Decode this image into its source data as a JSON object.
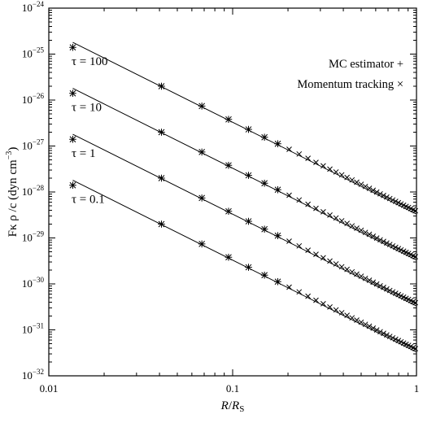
{
  "chart_data": {
    "type": "scatter",
    "x_scale": "log",
    "y_scale": "log",
    "xlim": [
      0.01,
      1
    ],
    "ylim": [
      1e-32,
      1e-24
    ],
    "x_ticks": [
      {
        "value": 0.01,
        "label": "0.01"
      },
      {
        "value": 0.1,
        "label": "0.1"
      },
      {
        "value": 1,
        "label": "1"
      }
    ],
    "y_ticks": [
      {
        "value": 1e-32,
        "base": "10",
        "exp": "−32"
      },
      {
        "value": 1e-31,
        "base": "10",
        "exp": "−31"
      },
      {
        "value": 1e-30,
        "base": "10",
        "exp": "−30"
      },
      {
        "value": 1e-29,
        "base": "10",
        "exp": "−29"
      },
      {
        "value": 1e-28,
        "base": "10",
        "exp": "−28"
      },
      {
        "value": 1e-27,
        "base": "10",
        "exp": "−27"
      },
      {
        "value": 1e-26,
        "base": "10",
        "exp": "−26"
      },
      {
        "value": 1e-25,
        "base": "10",
        "exp": "−25"
      },
      {
        "value": 1e-24,
        "base": "10",
        "exp": "−24"
      }
    ],
    "xlabel": {
      "var1": "R",
      "sep": "/",
      "var2": "R",
      "sub": "S"
    },
    "ylabel": {
      "main": "Fκ ρ /c (dyn cm",
      "sup": "−3",
      "close": ")"
    },
    "legend": {
      "position": "top-right",
      "entries": [
        {
          "label": "MC estimator",
          "marker": "+"
        },
        {
          "label": "Momentum tracking",
          "marker": "×"
        }
      ]
    },
    "series": [
      {
        "name": "τ = 100",
        "line_endpoints": [
          [
            0.0135,
            1.8e-25
          ],
          [
            1.0,
            3.3e-29
          ]
        ],
        "x": [
          0.0135,
          0.041,
          0.068,
          0.095,
          0.122,
          0.149,
          0.176,
          0.203,
          0.23,
          0.257,
          0.284,
          0.311,
          0.338,
          0.365,
          0.392,
          0.419,
          0.446,
          0.473,
          0.5,
          0.527,
          0.554,
          0.581,
          0.608,
          0.635,
          0.662,
          0.689,
          0.716,
          0.743,
          0.77,
          0.797,
          0.824,
          0.851,
          0.878,
          0.905,
          0.932,
          0.959,
          0.986
        ],
        "y": [
          1.4e-25,
          2e-26,
          7.4e-27,
          3.8e-27,
          2.3e-27,
          1.55e-27,
          1.12e-27,
          8.5e-28,
          6.7e-28,
          5.4e-28,
          4.4e-28,
          3.7e-28,
          3.15e-28,
          2.72e-28,
          2.36e-28,
          2.07e-28,
          1.83e-28,
          1.63e-28,
          1.47e-28,
          1.32e-28,
          1.2e-28,
          1.09e-28,
          9.95e-29,
          9.1e-29,
          8.4e-29,
          7.75e-29,
          7.2e-29,
          6.7e-29,
          6.25e-29,
          5.85e-29,
          5.5e-29,
          5.15e-29,
          4.85e-29,
          4.6e-29,
          4.35e-29,
          4.1e-29,
          3.9e-29
        ]
      },
      {
        "name": "τ = 10",
        "line_endpoints": [
          [
            0.0135,
            1.8e-26
          ],
          [
            1.0,
            3.3e-30
          ]
        ],
        "x": [
          0.0135,
          0.041,
          0.068,
          0.095,
          0.122,
          0.149,
          0.176,
          0.203,
          0.23,
          0.257,
          0.284,
          0.311,
          0.338,
          0.365,
          0.392,
          0.419,
          0.446,
          0.473,
          0.5,
          0.527,
          0.554,
          0.581,
          0.608,
          0.635,
          0.662,
          0.689,
          0.716,
          0.743,
          0.77,
          0.797,
          0.824,
          0.851,
          0.878,
          0.905,
          0.932,
          0.959,
          0.986
        ],
        "y": [
          1.4e-26,
          2e-27,
          7.4e-28,
          3.8e-28,
          2.3e-28,
          1.55e-28,
          1.12e-28,
          8.5e-29,
          6.7e-29,
          5.4e-29,
          4.4e-29,
          3.7e-29,
          3.15e-29,
          2.72e-29,
          2.36e-29,
          2.07e-29,
          1.83e-29,
          1.63e-29,
          1.47e-29,
          1.32e-29,
          1.2e-29,
          1.09e-29,
          9.95e-30,
          9.1e-30,
          8.4e-30,
          7.75e-30,
          7.2e-30,
          6.7e-30,
          6.25e-30,
          5.85e-30,
          5.5e-30,
          5.15e-30,
          4.85e-30,
          4.6e-30,
          4.35e-30,
          4.1e-30,
          3.9e-30
        ]
      },
      {
        "name": "τ = 1",
        "line_endpoints": [
          [
            0.0135,
            1.8e-27
          ],
          [
            1.0,
            3.3e-31
          ]
        ],
        "x": [
          0.0135,
          0.041,
          0.068,
          0.095,
          0.122,
          0.149,
          0.176,
          0.203,
          0.23,
          0.257,
          0.284,
          0.311,
          0.338,
          0.365,
          0.392,
          0.419,
          0.446,
          0.473,
          0.5,
          0.527,
          0.554,
          0.581,
          0.608,
          0.635,
          0.662,
          0.689,
          0.716,
          0.743,
          0.77,
          0.797,
          0.824,
          0.851,
          0.878,
          0.905,
          0.932,
          0.959,
          0.986
        ],
        "y": [
          1.4e-27,
          2e-28,
          7.4e-29,
          3.8e-29,
          2.3e-29,
          1.55e-29,
          1.12e-29,
          8.5e-30,
          6.7e-30,
          5.4e-30,
          4.4e-30,
          3.7e-30,
          3.15e-30,
          2.72e-30,
          2.36e-30,
          2.07e-30,
          1.83e-30,
          1.63e-30,
          1.47e-30,
          1.32e-30,
          1.2e-30,
          1.09e-30,
          9.95e-31,
          9.1e-31,
          8.4e-31,
          7.75e-31,
          7.2e-31,
          6.7e-31,
          6.25e-31,
          5.85e-31,
          5.5e-31,
          5.15e-31,
          4.85e-31,
          4.6e-31,
          4.35e-31,
          4.1e-31,
          3.9e-31
        ]
      },
      {
        "name": "τ = 0.1",
        "line_endpoints": [
          [
            0.0135,
            1.8e-28
          ],
          [
            1.0,
            3.3e-32
          ]
        ],
        "x": [
          0.0135,
          0.041,
          0.068,
          0.095,
          0.122,
          0.149,
          0.176,
          0.203,
          0.23,
          0.257,
          0.284,
          0.311,
          0.338,
          0.365,
          0.392,
          0.419,
          0.446,
          0.473,
          0.5,
          0.527,
          0.554,
          0.581,
          0.608,
          0.635,
          0.662,
          0.689,
          0.716,
          0.743,
          0.77,
          0.797,
          0.824,
          0.851,
          0.878,
          0.905,
          0.932,
          0.959,
          0.986
        ],
        "y": [
          1.4e-28,
          2e-29,
          7.4e-30,
          3.8e-30,
          2.3e-30,
          1.55e-30,
          1.12e-30,
          8.5e-31,
          6.7e-31,
          5.4e-31,
          4.4e-31,
          3.7e-31,
          3.15e-31,
          2.72e-31,
          2.36e-31,
          2.07e-31,
          1.83e-31,
          1.63e-31,
          1.47e-31,
          1.32e-31,
          1.2e-31,
          1.09e-31,
          9.95e-32,
          9.1e-32,
          8.4e-32,
          7.75e-32,
          7.2e-32,
          6.7e-32,
          6.25e-32,
          5.85e-32,
          5.5e-32,
          5.15e-32,
          4.85e-32,
          4.6e-32,
          4.35e-32,
          4.1e-32,
          3.9e-32
        ]
      }
    ]
  }
}
